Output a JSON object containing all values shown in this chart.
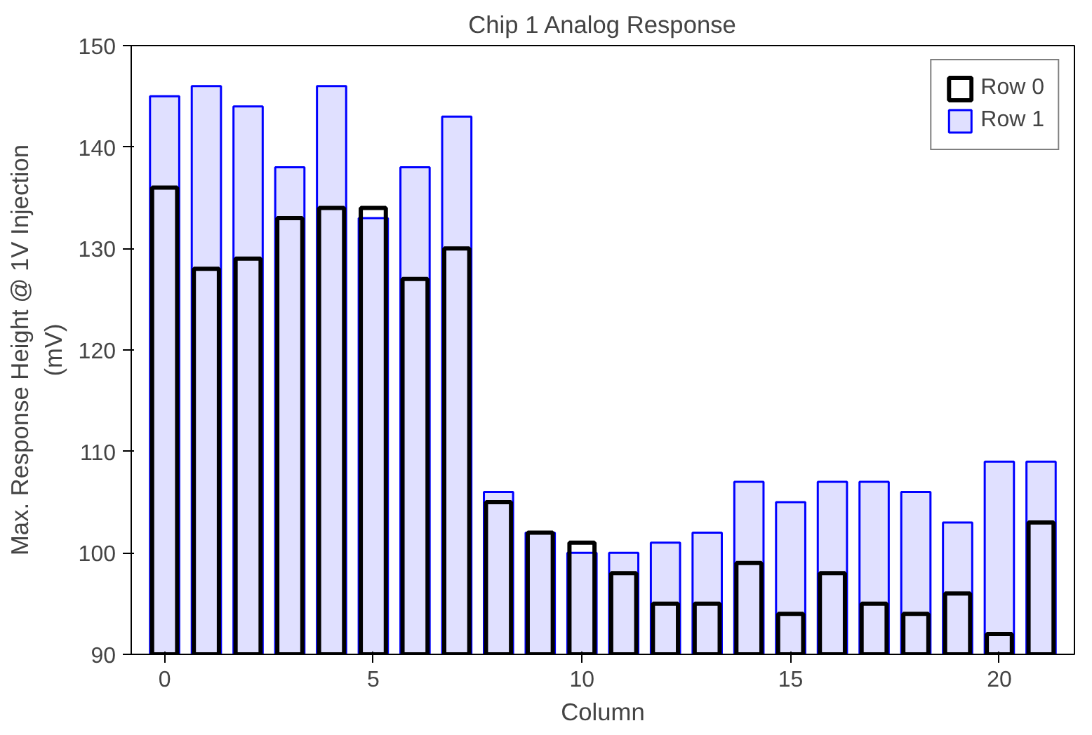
{
  "chart_data": {
    "type": "bar",
    "title": "Chip 1 Analog Response",
    "xlabel": "Column",
    "ylabel": "Max. Response Height @ 1V Injection\n(mV)",
    "x": [
      0,
      1,
      2,
      3,
      4,
      5,
      6,
      7,
      8,
      9,
      10,
      11,
      12,
      13,
      14,
      15,
      16,
      17,
      18,
      19,
      20,
      21
    ],
    "series": [
      {
        "name": "Row 1",
        "color": "#0000ff",
        "values": [
          145,
          146,
          144,
          138,
          146,
          133,
          138,
          143,
          106,
          102,
          100,
          100,
          101,
          102,
          107,
          105,
          107,
          107,
          106,
          103,
          109,
          109
        ]
      },
      {
        "name": "Row 0",
        "color": "#000000",
        "values": [
          136,
          128,
          129,
          133,
          134,
          134,
          127,
          130,
          105,
          102,
          101,
          98,
          95,
          95,
          99,
          94,
          98,
          95,
          94,
          96,
          92,
          103
        ]
      }
    ],
    "xlim": [
      -0.8,
      21.8
    ],
    "xticks": [
      0,
      5,
      10,
      15,
      20
    ],
    "ylim": [
      90,
      150
    ],
    "yticks": [
      90,
      100,
      110,
      120,
      130,
      140,
      150
    ],
    "grid": false,
    "legend": "top right"
  }
}
